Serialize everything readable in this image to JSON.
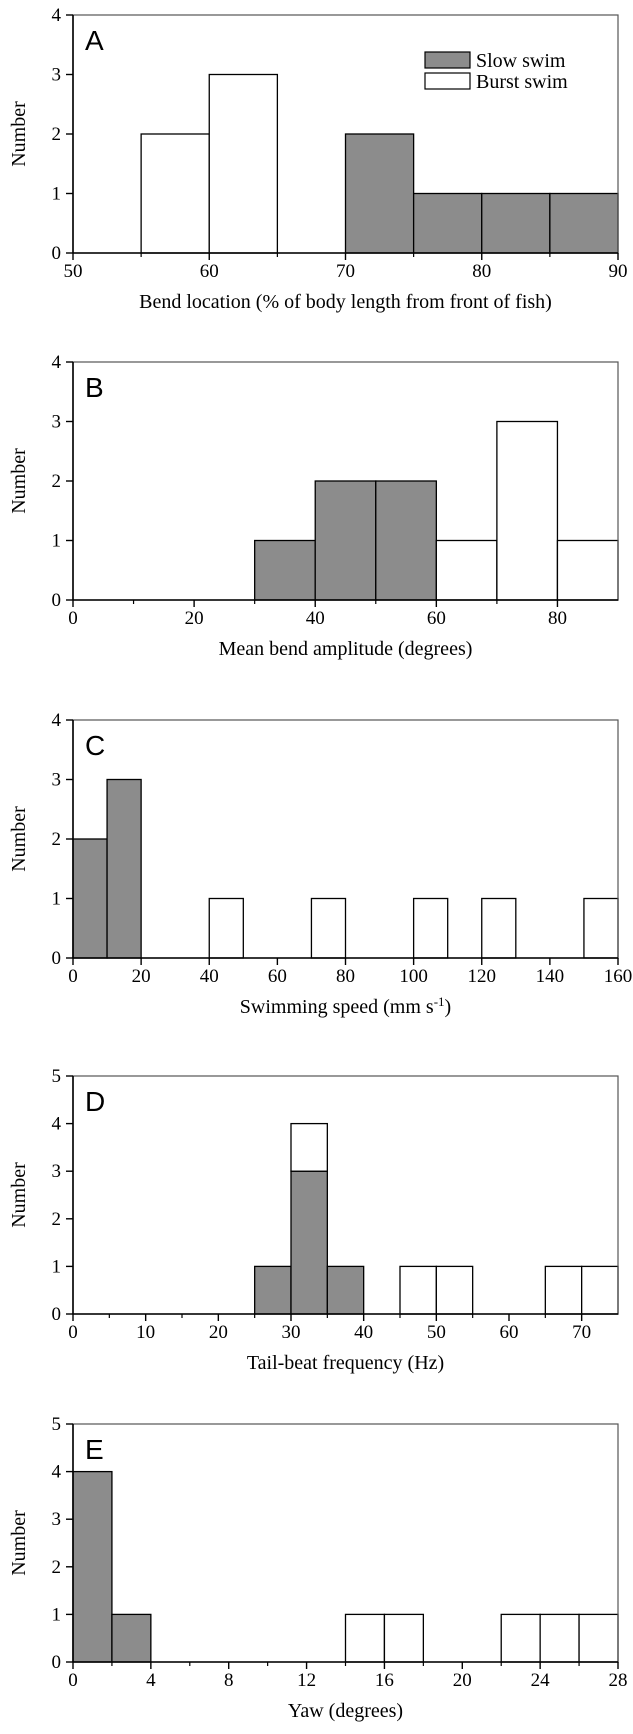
{
  "legend": {
    "slow_label": "Slow swim",
    "burst_label": "Burst swim"
  },
  "colors": {
    "slow": "#8c8c8c",
    "burst": "#ffffff",
    "frame": "#555555"
  },
  "chart_data": [
    {
      "type": "bar",
      "panel": "A",
      "xlabel": "Bend location (% of body length from front of fish)",
      "ylabel": "Number",
      "xlim": [
        50,
        90
      ],
      "ylim": [
        0,
        4
      ],
      "xticks": [
        50,
        60,
        70,
        80,
        90
      ],
      "minor_xticks": [
        55,
        65,
        75,
        85
      ],
      "yticks": [
        0,
        1,
        2,
        3,
        4
      ],
      "legend": "top-right",
      "bins": [
        {
          "x0": 55,
          "x1": 60,
          "slow": 0,
          "burst": 2
        },
        {
          "x0": 60,
          "x1": 65,
          "slow": 0,
          "burst": 3
        },
        {
          "x0": 70,
          "x1": 75,
          "slow": 2,
          "burst": 0
        },
        {
          "x0": 75,
          "x1": 80,
          "slow": 1,
          "burst": 0
        },
        {
          "x0": 80,
          "x1": 85,
          "slow": 1,
          "burst": 0
        },
        {
          "x0": 85,
          "x1": 90,
          "slow": 1,
          "burst": 0
        }
      ]
    },
    {
      "type": "bar",
      "panel": "B",
      "xlabel": "Mean bend amplitude (degrees)",
      "ylabel": "Number",
      "xlim": [
        0,
        90
      ],
      "ylim": [
        0,
        4
      ],
      "xticks": [
        0,
        20,
        40,
        60,
        80
      ],
      "minor_xticks": [
        10,
        30,
        50,
        70
      ],
      "yticks": [
        0,
        1,
        2,
        3,
        4
      ],
      "bins": [
        {
          "x0": 30,
          "x1": 40,
          "slow": 1,
          "burst": 0
        },
        {
          "x0": 40,
          "x1": 50,
          "slow": 2,
          "burst": 0
        },
        {
          "x0": 50,
          "x1": 60,
          "slow": 2,
          "burst": 0
        },
        {
          "x0": 60,
          "x1": 70,
          "slow": 0,
          "burst": 1
        },
        {
          "x0": 70,
          "x1": 80,
          "slow": 0,
          "burst": 3
        },
        {
          "x0": 80,
          "x1": 90,
          "slow": 0,
          "burst": 1
        }
      ]
    },
    {
      "type": "bar",
      "panel": "C",
      "xlabel": "Swimming speed (mm s",
      "xlabel_sup": "-1",
      "xlabel_end": ")",
      "ylabel": "Number",
      "xlim": [
        0,
        160
      ],
      "ylim": [
        0,
        4
      ],
      "xticks": [
        0,
        20,
        40,
        60,
        80,
        100,
        120,
        140,
        160
      ],
      "minor_xticks": [],
      "yticks": [
        0,
        1,
        2,
        3,
        4
      ],
      "bins": [
        {
          "x0": 0,
          "x1": 10,
          "slow": 2,
          "burst": 0
        },
        {
          "x0": 10,
          "x1": 20,
          "slow": 3,
          "burst": 0
        },
        {
          "x0": 40,
          "x1": 50,
          "slow": 0,
          "burst": 1
        },
        {
          "x0": 70,
          "x1": 80,
          "slow": 0,
          "burst": 1
        },
        {
          "x0": 100,
          "x1": 110,
          "slow": 0,
          "burst": 1
        },
        {
          "x0": 120,
          "x1": 130,
          "slow": 0,
          "burst": 1
        },
        {
          "x0": 150,
          "x1": 160,
          "slow": 0,
          "burst": 1
        }
      ]
    },
    {
      "type": "bar",
      "panel": "D",
      "xlabel": "Tail-beat frequency (Hz)",
      "ylabel": "Number",
      "xlim": [
        0,
        75
      ],
      "ylim": [
        0,
        5
      ],
      "xticks": [
        0,
        10,
        20,
        30,
        40,
        50,
        60,
        70
      ],
      "minor_xticks": [
        5,
        15,
        25,
        35,
        45,
        55,
        65
      ],
      "yticks": [
        0,
        1,
        2,
        3,
        4,
        5
      ],
      "bins": [
        {
          "x0": 25,
          "x1": 30,
          "slow": 1,
          "burst": 0
        },
        {
          "x0": 30,
          "x1": 35,
          "slow": 3,
          "burst": 1
        },
        {
          "x0": 35,
          "x1": 40,
          "slow": 1,
          "burst": 0
        },
        {
          "x0": 45,
          "x1": 50,
          "slow": 0,
          "burst": 1
        },
        {
          "x0": 50,
          "x1": 55,
          "slow": 0,
          "burst": 1
        },
        {
          "x0": 65,
          "x1": 70,
          "slow": 0,
          "burst": 1
        },
        {
          "x0": 70,
          "x1": 75,
          "slow": 0,
          "burst": 1
        }
      ]
    },
    {
      "type": "bar",
      "panel": "E",
      "xlabel": "Yaw (degrees)",
      "ylabel": "Number",
      "xlim": [
        0,
        28
      ],
      "ylim": [
        0,
        5
      ],
      "xticks": [
        0,
        4,
        8,
        12,
        16,
        20,
        24,
        28
      ],
      "minor_xticks": [
        2,
        6,
        10,
        14,
        18,
        22,
        26
      ],
      "yticks": [
        0,
        1,
        2,
        3,
        4,
        5
      ],
      "bins": [
        {
          "x0": 0,
          "x1": 2,
          "slow": 4,
          "burst": 0
        },
        {
          "x0": 2,
          "x1": 4,
          "slow": 1,
          "burst": 0
        },
        {
          "x0": 14,
          "x1": 16,
          "slow": 0,
          "burst": 1
        },
        {
          "x0": 16,
          "x1": 18,
          "slow": 0,
          "burst": 1
        },
        {
          "x0": 22,
          "x1": 24,
          "slow": 0,
          "burst": 1
        },
        {
          "x0": 24,
          "x1": 26,
          "slow": 0,
          "burst": 1
        },
        {
          "x0": 26,
          "x1": 28,
          "slow": 0,
          "burst": 1
        }
      ]
    }
  ]
}
